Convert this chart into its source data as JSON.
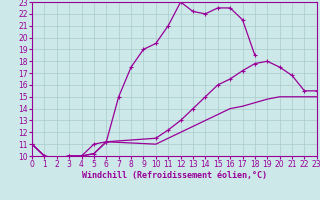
{
  "xlabel": "Windchill (Refroidissement éolien,°C)",
  "bg_color": "#cce8e8",
  "line_color": "#990099",
  "grid_color": "#aacccc",
  "line1_x": [
    0,
    1,
    2,
    3,
    4,
    5,
    6,
    7,
    8,
    9,
    10,
    11,
    12,
    13,
    14,
    15,
    16,
    17,
    18
  ],
  "line1_y": [
    11.0,
    10.0,
    9.8,
    10.0,
    10.0,
    11.0,
    11.2,
    15.0,
    17.5,
    19.0,
    19.5,
    21.0,
    23.0,
    22.2,
    22.0,
    22.5,
    22.5,
    21.5,
    18.5
  ],
  "line2_x": [
    0,
    1,
    2,
    3,
    4,
    5,
    6,
    10,
    11,
    12,
    13,
    14,
    15,
    16,
    17,
    18,
    19,
    20,
    21,
    22,
    23
  ],
  "line2_y": [
    11.0,
    10.0,
    9.8,
    10.0,
    10.0,
    10.2,
    11.2,
    11.5,
    12.2,
    13.0,
    14.0,
    15.0,
    16.0,
    16.5,
    17.2,
    17.8,
    18.0,
    17.5,
    16.8,
    15.5,
    15.5
  ],
  "line3_x": [
    0,
    1,
    2,
    3,
    4,
    5,
    6,
    10,
    11,
    12,
    13,
    14,
    15,
    16,
    17,
    18,
    19,
    20,
    21,
    22,
    23
  ],
  "line3_y": [
    11.0,
    10.0,
    9.8,
    10.0,
    10.0,
    10.2,
    11.2,
    11.0,
    11.5,
    12.0,
    12.5,
    13.0,
    13.5,
    14.0,
    14.2,
    14.5,
    14.8,
    15.0,
    15.0,
    15.0,
    15.0
  ],
  "xlim": [
    0,
    23
  ],
  "ylim": [
    10,
    23
  ],
  "xticks": [
    0,
    1,
    2,
    3,
    4,
    5,
    6,
    7,
    8,
    9,
    10,
    11,
    12,
    13,
    14,
    15,
    16,
    17,
    18,
    19,
    20,
    21,
    22,
    23
  ],
  "yticks": [
    10,
    11,
    12,
    13,
    14,
    15,
    16,
    17,
    18,
    19,
    20,
    21,
    22,
    23
  ],
  "tick_fontsize": 5.5,
  "xlabel_fontsize": 6.0
}
